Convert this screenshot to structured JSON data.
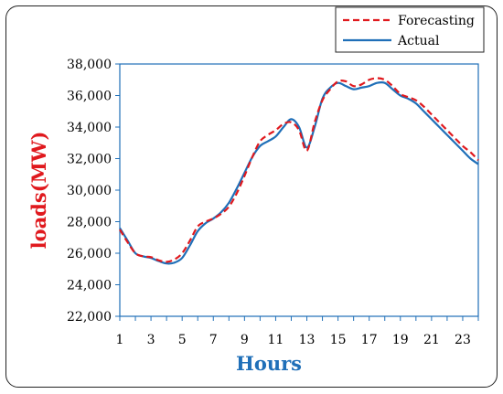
{
  "chart_data": {
    "type": "line",
    "title": "",
    "xlabel": "Hours",
    "ylabel": "loads(MW)",
    "xlim": [
      1,
      24
    ],
    "ylim": [
      22000,
      38000
    ],
    "x_ticks": [
      "1",
      "3",
      "5",
      "7",
      "9",
      "11",
      "13",
      "15",
      "17",
      "19",
      "21",
      "23"
    ],
    "y_ticks": [
      "22,000",
      "24,000",
      "26,000",
      "28,000",
      "30,000",
      "32,000",
      "34,000",
      "36,000",
      "38,000"
    ],
    "x": [
      1,
      1.5,
      2,
      2.5,
      3,
      3.5,
      4,
      4.5,
      5,
      5.5,
      6,
      6.5,
      7,
      7.5,
      8,
      8.5,
      9,
      9.5,
      10,
      10.5,
      11,
      11.5,
      12,
      12.5,
      13,
      13.5,
      14,
      14.5,
      15,
      15.5,
      16,
      16.5,
      17,
      17.5,
      18,
      18.5,
      19,
      19.5,
      20,
      20.5,
      21,
      21.5,
      22,
      22.5,
      23,
      23.5,
      24
    ],
    "series": [
      {
        "name": "Forecasting",
        "color": "#e0191e",
        "style": "dashed",
        "values": [
          27500,
          26700,
          26000,
          25800,
          25750,
          25550,
          25450,
          25600,
          26000,
          26800,
          27700,
          28000,
          28200,
          28500,
          28950,
          29800,
          30900,
          32100,
          33100,
          33500,
          33800,
          34200,
          34300,
          33800,
          32500,
          34300,
          35700,
          36400,
          36900,
          36900,
          36600,
          36700,
          37000,
          37100,
          37000,
          36600,
          36100,
          35900,
          35700,
          35300,
          34800,
          34300,
          33800,
          33300,
          32800,
          32400,
          31900
        ]
      },
      {
        "name": "Actual",
        "color": "#1f6fb8",
        "style": "solid",
        "values": [
          27600,
          26800,
          26000,
          25800,
          25700,
          25500,
          25350,
          25400,
          25700,
          26500,
          27400,
          27900,
          28200,
          28600,
          29200,
          30100,
          31100,
          32100,
          32800,
          33100,
          33400,
          34000,
          34500,
          34000,
          32700,
          34000,
          35800,
          36500,
          36800,
          36600,
          36400,
          36500,
          36600,
          36800,
          36800,
          36400,
          36000,
          35800,
          35500,
          35000,
          34500,
          34000,
          33500,
          33000,
          32500,
          32000,
          31650
        ]
      }
    ],
    "legend_position": "top-right",
    "grid": false
  }
}
